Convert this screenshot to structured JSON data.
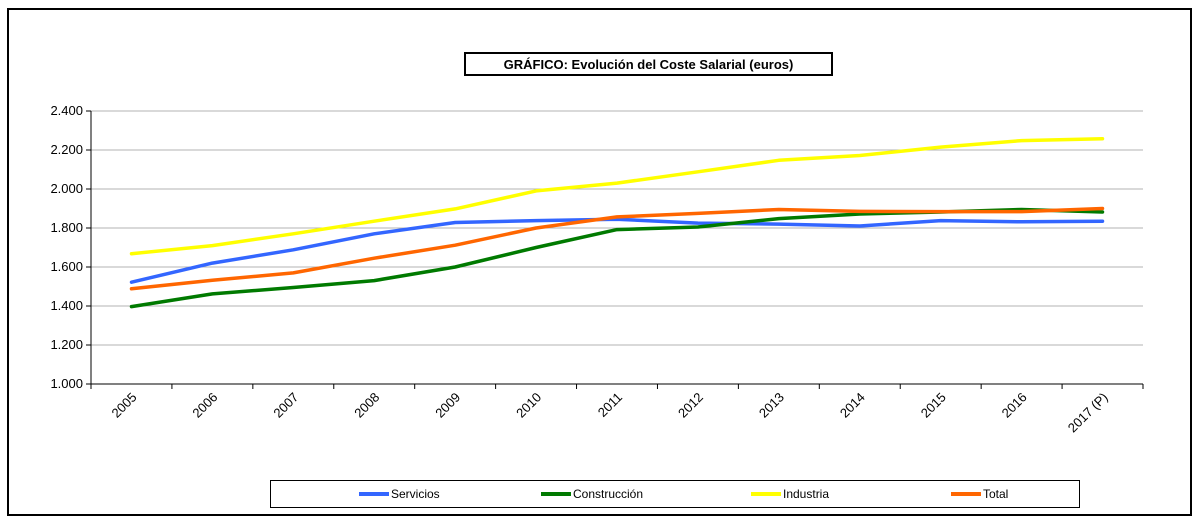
{
  "chart_data": {
    "type": "line",
    "title": "GRÁFICO: Evolución del Coste Salarial (euros)",
    "categories": [
      "2005",
      "2006",
      "2007",
      "2008",
      "2009",
      "2010",
      "2011",
      "2012",
      "2013",
      "2014",
      "2015",
      "2016",
      "2017 (P)"
    ],
    "yticks": [
      "1.000",
      "1.200",
      "1.400",
      "1.600",
      "1.800",
      "2.000",
      "2.200",
      "2.400"
    ],
    "ylim": [
      1000,
      2400
    ],
    "ystep": 200,
    "grid": true,
    "legend_position": "bottom",
    "series": [
      {
        "name": "Servicios",
        "color": "#3366FF",
        "values": [
          1522,
          1620,
          1688,
          1770,
          1828,
          1838,
          1845,
          1825,
          1820,
          1810,
          1838,
          1832,
          1835
        ]
      },
      {
        "name": "Construcción",
        "color": "#007A00",
        "values": [
          1397,
          1462,
          1495,
          1530,
          1600,
          1700,
          1792,
          1805,
          1848,
          1872,
          1882,
          1895,
          1882
        ]
      },
      {
        "name": "Industria",
        "color": "#FFFF00",
        "values": [
          1668,
          1710,
          1770,
          1835,
          1898,
          1990,
          2030,
          2088,
          2147,
          2172,
          2215,
          2248,
          2258
        ]
      },
      {
        "name": "Total",
        "color": "#FF6600",
        "values": [
          1488,
          1532,
          1570,
          1645,
          1712,
          1800,
          1857,
          1875,
          1895,
          1885,
          1884,
          1884,
          1900
        ]
      }
    ]
  }
}
